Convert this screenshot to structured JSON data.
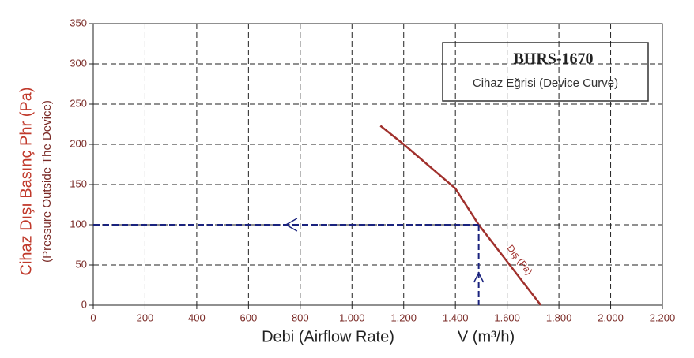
{
  "chart_data": {
    "type": "line",
    "title": "BHRS-1670",
    "subtitle": "Cihaz Eğrisi (Device Curve)",
    "xlabel": "Debi (Airflow Rate)",
    "xunit": "V (m³/h)",
    "ylabel": "Cihaz Dışı Basınç Phr (Pa)",
    "ylabel2": "(Pressure Outside The Device)",
    "xlim": [
      0,
      2200
    ],
    "ylim": [
      0,
      350
    ],
    "xticks": [
      0,
      200,
      400,
      600,
      800,
      {
        "value": 1000,
        "label": "1.000"
      },
      {
        "value": 1200,
        "label": "1.200"
      },
      {
        "value": 1400,
        "label": "1.400"
      },
      {
        "value": 1600,
        "label": "1.600"
      },
      {
        "value": 1800,
        "label": "1.800"
      },
      {
        "value": 2000,
        "label": "2.000"
      },
      {
        "value": 2200,
        "label": "2.200"
      }
    ],
    "yticks": [
      0,
      50,
      100,
      150,
      200,
      250,
      300,
      350
    ],
    "grid": true,
    "series": [
      {
        "name": "Dış (Pa)",
        "color": "#a0302c",
        "x": [
          1110,
          1200,
          1400,
          1490,
          1730
        ],
        "values": [
          223,
          200,
          145,
          100,
          0
        ]
      }
    ],
    "operating_point": {
      "x": 1490,
      "y": 100,
      "color": "#1a237e"
    }
  }
}
